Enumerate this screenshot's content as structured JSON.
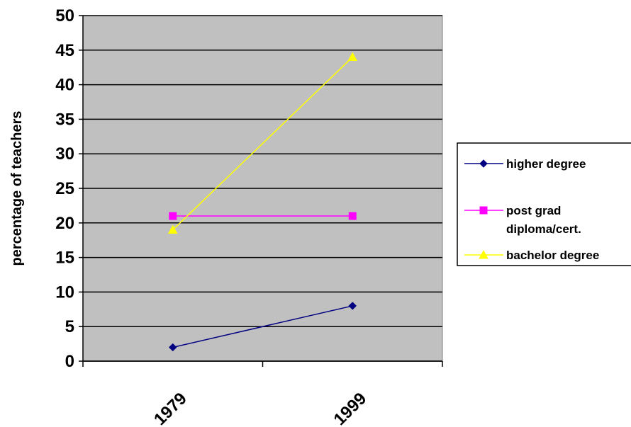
{
  "chart_data": {
    "type": "line",
    "categories": [
      "1979",
      "1999"
    ],
    "ylabel": "percentage of teachers",
    "ylim": [
      0,
      50
    ],
    "yticks": [
      0,
      5,
      10,
      15,
      20,
      25,
      30,
      35,
      40,
      45,
      50
    ],
    "grid": true,
    "plot_background": "#c0c0c0",
    "legend_position": "right",
    "series": [
      {
        "name": "higher degree",
        "values": [
          2,
          8
        ],
        "color": "#000080",
        "marker": "diamond"
      },
      {
        "name": "post grad diploma/cert.",
        "legend_lines": [
          "post grad",
          "diploma/cert."
        ],
        "values": [
          21,
          21
        ],
        "color": "#ff00ff",
        "marker": "square"
      },
      {
        "name": "bachelor degree",
        "values": [
          19,
          44
        ],
        "color": "#ffff00",
        "marker": "triangle"
      }
    ]
  }
}
